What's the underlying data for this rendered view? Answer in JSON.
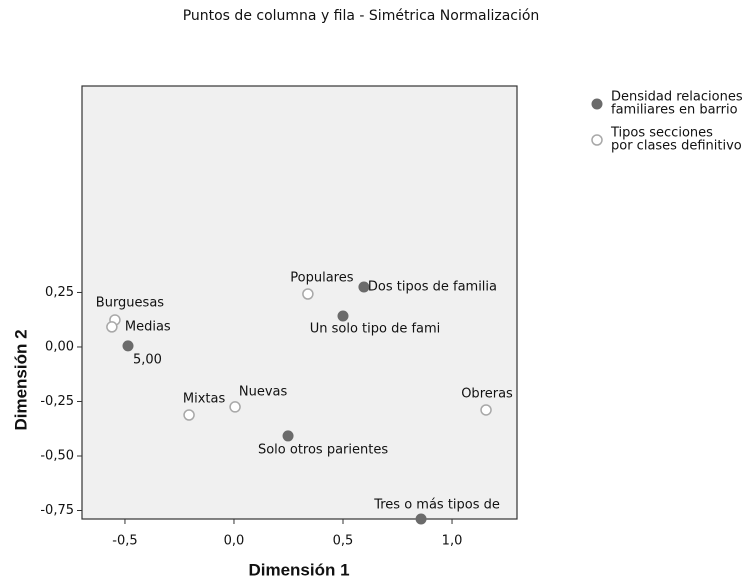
{
  "chart_data": {
    "type": "scatter",
    "title": "Puntos de columna y fila  -  Simétrica Normalización",
    "xlabel": "Dimensión 1",
    "ylabel": "Dimensión 2",
    "xlim": [
      -0.697,
      1.298
    ],
    "ylim": [
      -0.789,
      1.197
    ],
    "xticks": [
      {
        "value": -0.5,
        "label": "-0,5"
      },
      {
        "value": 0,
        "label": "0,0"
      },
      {
        "value": 0.5,
        "label": "0,5"
      },
      {
        "value": 1,
        "label": "1,0"
      }
    ],
    "yticks": [
      {
        "value": 0.25,
        "label": "0,25"
      },
      {
        "value": 0,
        "label": "0,00"
      },
      {
        "value": -0.25,
        "label": "-0,25"
      },
      {
        "value": -0.5,
        "label": "-0,50"
      },
      {
        "value": -0.75,
        "label": "-0,75"
      }
    ],
    "legend": "right",
    "series": [
      {
        "name": "Densidad relaciones familiares en barrio",
        "color": "#6b6b6b",
        "marker": "filled",
        "labels": [
          "Dos tipos de familia",
          "Un solo tipo de fami",
          "5,00",
          "Solo otros parientes",
          "Tres o más tipos de"
        ],
        "x": [
          0.596,
          0.5,
          -0.486,
          0.248,
          0.858
        ],
        "values": [
          0.275,
          0.142,
          0.005,
          -0.408,
          -0.789
        ]
      },
      {
        "name": "Tipos secciones por clases definitivo",
        "color": "#a8a8a8",
        "marker": "hollow",
        "labels": [
          "Populares",
          "Burguesas",
          "Medias",
          "Nuevas",
          "Mixtas",
          "Obreras"
        ],
        "x": [
          0.339,
          -0.546,
          -0.56,
          0.005,
          -0.206,
          1.156
        ],
        "values": [
          0.243,
          0.124,
          0.092,
          -0.275,
          -0.312,
          -0.289
        ]
      }
    ]
  }
}
